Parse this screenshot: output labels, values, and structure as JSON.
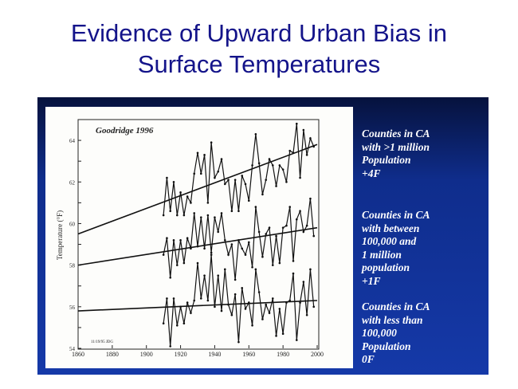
{
  "slide": {
    "title_lines": [
      "Evidence of Upward Urban Bias in",
      "Surface Temperatures"
    ],
    "annotations": [
      {
        "lines": [
          "Counties in CA",
          "with >1 million",
          "Population",
          "+4F"
        ]
      },
      {
        "lines": [
          "Counties in CA",
          "with between",
          "100,000 and",
          "1 million",
          "population",
          "+1F"
        ]
      },
      {
        "lines": [
          "Counties in CA",
          "with less than",
          "100,000",
          "Population",
          "0F"
        ]
      }
    ]
  },
  "chart_data": {
    "type": "line",
    "title": "Goodridge 1996",
    "footnote": "11/19/95 JDG",
    "xlabel": "",
    "ylabel": "Temperature (°F)",
    "xlim": [
      1860,
      2000
    ],
    "ylim": [
      54,
      65
    ],
    "xticks": [
      "1860",
      "1880",
      "1900",
      "1920",
      "1940",
      "1960",
      "1980",
      "2000"
    ],
    "yticks": [
      "54",
      "56",
      "58",
      "60",
      "62",
      "64"
    ],
    "x_start": 1910,
    "x_step": 2,
    "series": [
      {
        "name": "Counties with >1 million population",
        "values": [
          60.4,
          62.2,
          60.6,
          62.0,
          60.4,
          61.5,
          60.4,
          61.3,
          61.0,
          62.4,
          63.4,
          62.4,
          63.3,
          61.0,
          63.9,
          62.2,
          62.5,
          63.1,
          61.9,
          62.1,
          60.6,
          62.1,
          60.6,
          62.3,
          61.9,
          61.1,
          62.8,
          64.3,
          62.9,
          61.4,
          62.1,
          63.1,
          62.8,
          61.8,
          62.8,
          62.6,
          62.0,
          63.5,
          63.4,
          64.8,
          62.2,
          64.5,
          63.3,
          64.1,
          63.7
        ],
        "trend": [
          [
            1860,
            59.5
          ],
          [
            2000,
            63.8
          ]
        ]
      },
      {
        "name": "Counties with 100,000 to 1 million population",
        "values": [
          58.5,
          59.3,
          57.4,
          59.2,
          58.0,
          59.2,
          58.1,
          59.3,
          58.8,
          60.5,
          58.9,
          60.3,
          58.8,
          60.4,
          58.6,
          60.3,
          59.6,
          60.5,
          59.2,
          58.5,
          59.0,
          57.3,
          59.2,
          58.8,
          58.5,
          59.1,
          57.9,
          60.8,
          59.6,
          58.4,
          59.5,
          59.8,
          58.0,
          59.4,
          58.1,
          59.8,
          59.9,
          60.8,
          58.2,
          60.2,
          60.6,
          59.6,
          59.9,
          61.2,
          59.4
        ],
        "trend": [
          [
            1860,
            58.0
          ],
          [
            2000,
            59.8
          ]
        ]
      },
      {
        "name": "Counties with less than 100,000 population",
        "values": [
          55.2,
          56.4,
          54.1,
          56.4,
          55.1,
          56.0,
          55.2,
          56.2,
          55.7,
          56.3,
          58.1,
          56.4,
          57.5,
          56.3,
          58.5,
          56.0,
          57.5,
          55.8,
          57.8,
          56.1,
          55.6,
          56.6,
          54.3,
          56.9,
          55.9,
          56.2,
          55.1,
          57.8,
          56.7,
          55.4,
          56.1,
          55.7,
          56.4,
          54.6,
          55.9,
          54.7,
          56.2,
          56.3,
          57.6,
          54.4,
          56.2,
          57.2,
          55.6,
          57.8,
          56.0
        ],
        "trend": [
          [
            1860,
            55.8
          ],
          [
            2000,
            56.3
          ]
        ]
      }
    ],
    "colors": {
      "line": "#111111",
      "panel": "#1539a8",
      "title": "#14148a"
    }
  }
}
